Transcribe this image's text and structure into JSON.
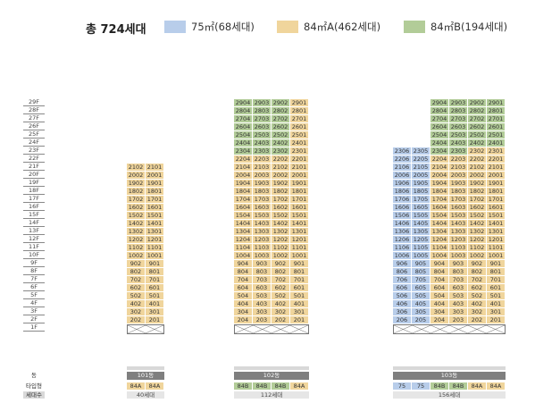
{
  "header": {
    "total": "총 724세대",
    "legend": [
      {
        "label": "75㎡(68세대)",
        "color": "#b8cdea",
        "key": "75"
      },
      {
        "label": "84㎡A(462세대)",
        "color": "#f0d59c",
        "key": "84A"
      },
      {
        "label": "84㎡B(194세대)",
        "color": "#b2cc98",
        "key": "84B"
      }
    ]
  },
  "floors": [
    "29F",
    "28F",
    "27F",
    "26F",
    "25F",
    "24F",
    "23F",
    "22F",
    "21F",
    "20F",
    "19F",
    "18F",
    "17F",
    "16F",
    "15F",
    "14F",
    "13F",
    "12F",
    "11F",
    "10F",
    "9F",
    "8F",
    "7F",
    "6F",
    "5F",
    "4F",
    "3F",
    "2F",
    "1F"
  ],
  "row_labels": {
    "dong": "동",
    "type": "타입형",
    "households": "세대수"
  },
  "buildings": [
    {
      "dong": "101동",
      "households": "40세대",
      "top_floor": 21,
      "units": [
        {
          "line": "02",
          "type": "84A"
        },
        {
          "line": "01",
          "type": "84A"
        }
      ]
    },
    {
      "dong": "102동",
      "households": "112세대",
      "top_floor": 29,
      "units": [
        {
          "line": "04",
          "type": "84B"
        },
        {
          "line": "03",
          "type": "84B"
        },
        {
          "line": "02",
          "type": "84B"
        },
        {
          "line": "01",
          "type": "84A"
        }
      ]
    },
    {
      "dong": "103동",
      "households": "156세대",
      "top_floor": 29,
      "units": [
        {
          "line": "06",
          "type": "75",
          "top_floor": 23
        },
        {
          "line": "05",
          "type": "75",
          "top_floor": 23
        },
        {
          "line": "04",
          "type": "84B"
        },
        {
          "line": "03",
          "type": "84B"
        },
        {
          "line": "02",
          "type": "84A"
        },
        {
          "line": "01",
          "type": "84A"
        }
      ]
    }
  ],
  "green_top_floor": 23
}
